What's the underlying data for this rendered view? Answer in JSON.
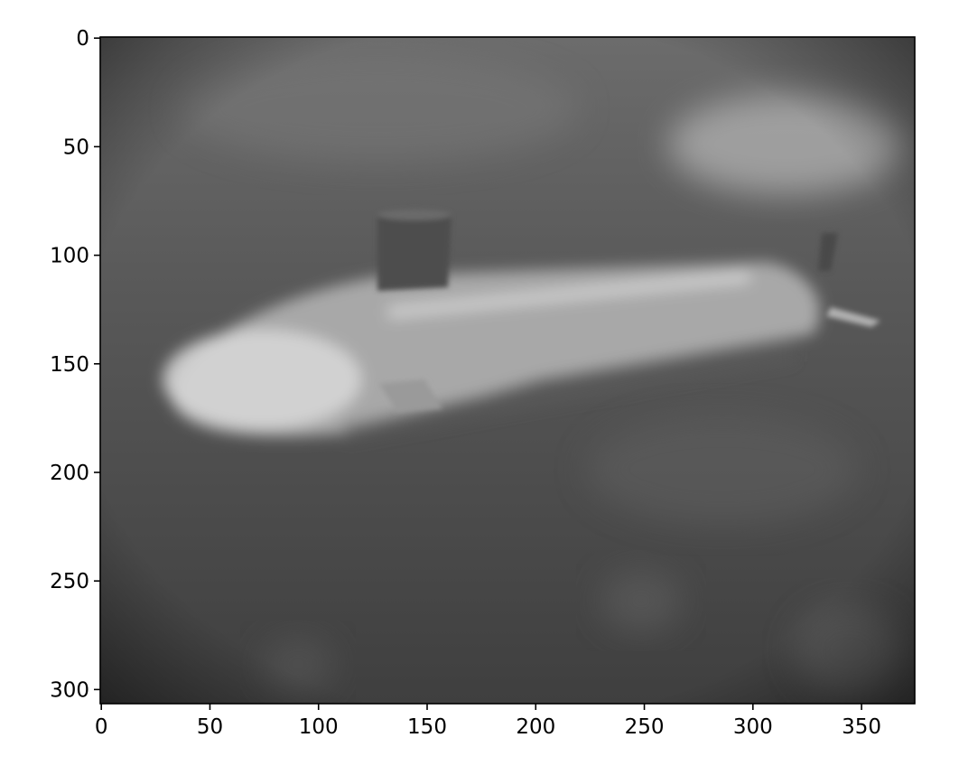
{
  "chart_data": {
    "type": "heatmap",
    "colormap": "gray",
    "title": "",
    "xlabel": "",
    "ylabel": "",
    "image_shape": [
      307,
      375
    ],
    "xlim": [
      -0.5,
      374.5
    ],
    "ylim": [
      306.5,
      -0.5
    ],
    "x_ticks": [
      0,
      50,
      100,
      150,
      200,
      250,
      300,
      350
    ],
    "y_ticks": [
      0,
      50,
      100,
      150,
      200,
      250,
      300
    ],
    "x_tick_labels": [
      "0",
      "50",
      "100",
      "150",
      "200",
      "250",
      "300",
      "350"
    ],
    "y_tick_labels": [
      "0",
      "50",
      "100",
      "150",
      "200",
      "250",
      "300"
    ],
    "content": "blurred grayscale image of a submarine-like object",
    "grid": false,
    "legend": "none"
  }
}
